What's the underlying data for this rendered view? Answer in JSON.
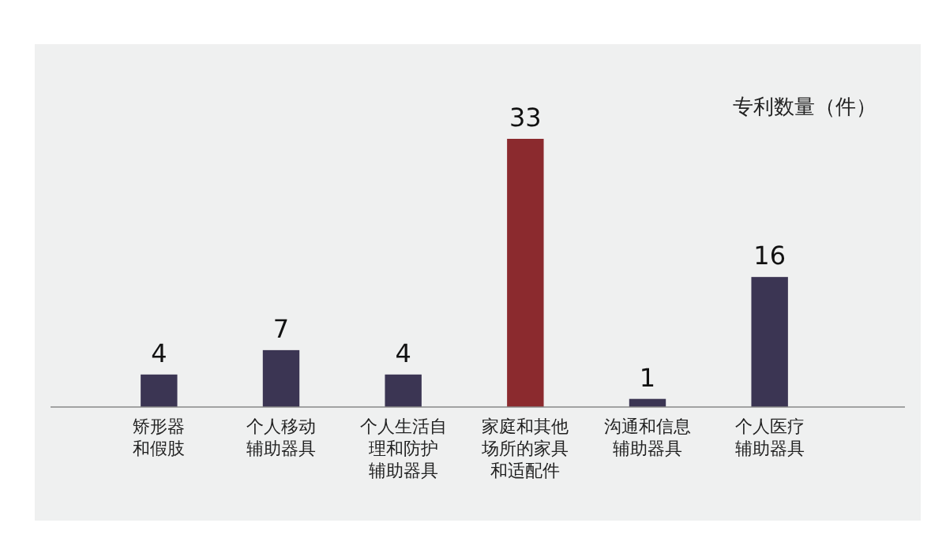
{
  "chart_data": {
    "type": "bar",
    "ylabel": "专利数量（件）",
    "categories": [
      "矫形器和假肢",
      "个人移动辅助器具",
      "个人生活自理和防护辅助器具",
      "家庭和其他场所的家具和适配件",
      "沟通和信息辅助器具",
      "个人医疗辅助器具"
    ],
    "values": [
      4,
      7,
      4,
      33,
      1,
      16
    ],
    "colors": [
      "#3b3553",
      "#3b3553",
      "#3b3553",
      "#8b2a2e",
      "#3b3553",
      "#3b3553"
    ],
    "data_labels": true
  }
}
